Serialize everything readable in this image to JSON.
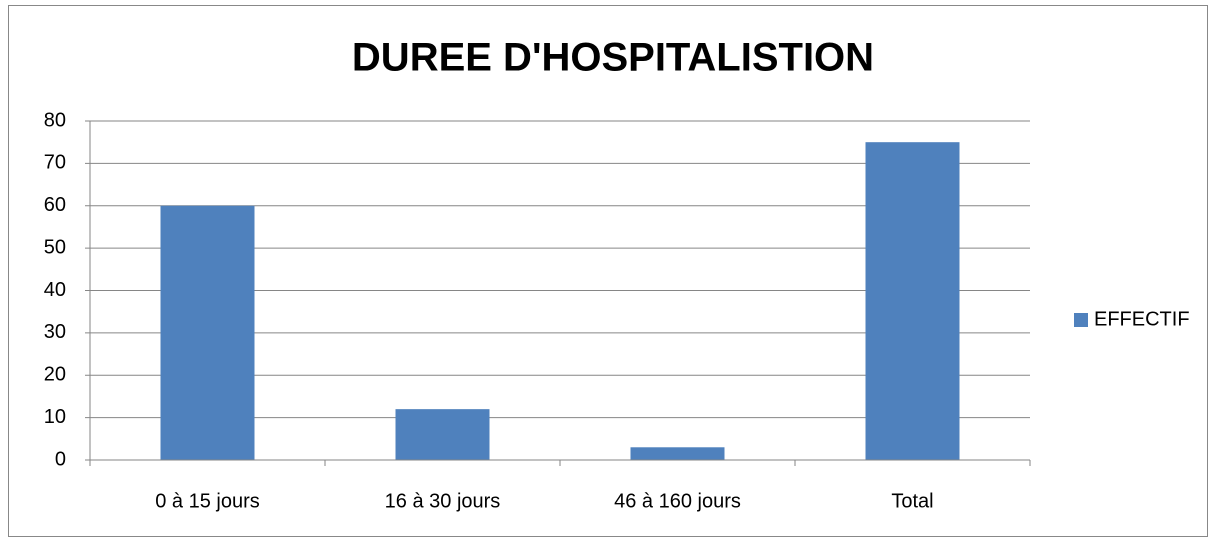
{
  "chart_data": {
    "type": "bar",
    "title": "DUREE D'HOSPITALISTION",
    "categories": [
      "0 à 15 jours",
      "16 à 30 jours",
      "46 à 160 jours",
      "Total"
    ],
    "series": [
      {
        "name": "EFFECTIF",
        "color": "#4f81bd",
        "values": [
          60,
          12,
          3,
          75
        ]
      }
    ],
    "ylim": [
      0,
      80
    ],
    "yticks": [
      0,
      10,
      20,
      30,
      40,
      50,
      60,
      70,
      80
    ],
    "grid": true,
    "legend": "right"
  }
}
